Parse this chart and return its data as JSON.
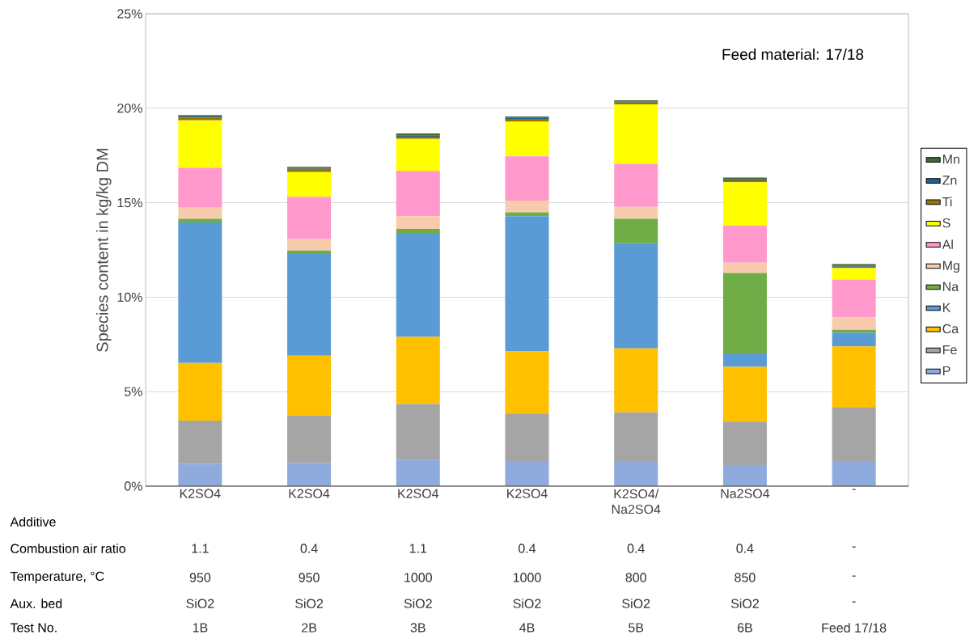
{
  "chart_data": {
    "type": "bar",
    "stacked": true,
    "ylabel": "Species content in kg/kg DM",
    "categories": [
      "K2SO4",
      "K2SO4",
      "K2SO4",
      "K2SO4",
      "K2SO4/ Na2SO4",
      "Na2SO4",
      "-"
    ],
    "series": [
      {
        "name": "P",
        "color": "#8faadc",
        "values": [
          1.18,
          1.23,
          1.4,
          1.28,
          1.28,
          1.11,
          1.33
        ]
      },
      {
        "name": "Fe",
        "color": "#a5a5a5",
        "values": [
          2.29,
          2.52,
          2.95,
          2.56,
          2.63,
          2.3,
          2.85
        ]
      },
      {
        "name": "Ca",
        "color": "#ffc000",
        "values": [
          3.05,
          3.15,
          3.55,
          3.29,
          3.38,
          2.9,
          3.21
        ]
      },
      {
        "name": "K",
        "color": "#5b9bd5",
        "values": [
          7.43,
          5.43,
          5.5,
          7.16,
          5.56,
          0.71,
          0.73
        ]
      },
      {
        "name": "Na",
        "color": "#70ad47",
        "values": [
          0.2,
          0.14,
          0.21,
          0.2,
          1.3,
          4.26,
          0.15
        ]
      },
      {
        "name": "Mg",
        "color": "#f8cbad",
        "values": [
          0.59,
          0.61,
          0.68,
          0.62,
          0.63,
          0.55,
          0.66
        ]
      },
      {
        "name": "Al",
        "color": "#ff99cc",
        "values": [
          2.11,
          2.23,
          2.39,
          2.34,
          2.28,
          1.95,
          2.0
        ]
      },
      {
        "name": "S",
        "color": "#ffff00",
        "values": [
          2.51,
          1.31,
          1.69,
          1.84,
          3.14,
          2.3,
          0.61
        ]
      },
      {
        "name": "Ti",
        "color": "#997300",
        "values": [
          0.14,
          0.17,
          0.12,
          0.14,
          0.1,
          0.1,
          0.07
        ]
      },
      {
        "name": "Zn",
        "color": "#255e91",
        "values": [
          0.07,
          0.04,
          0.08,
          0.07,
          0.05,
          0.07,
          0.04
        ]
      },
      {
        "name": "Mn",
        "color": "#43682b",
        "values": [
          0.07,
          0.07,
          0.09,
          0.06,
          0.07,
          0.08,
          0.1
        ]
      }
    ],
    "ylim": [
      0,
      25
    ],
    "yticks": [
      {
        "value": 0,
        "label": "0%"
      },
      {
        "value": 5,
        "label": "5%"
      },
      {
        "value": 10,
        "label": "10%"
      },
      {
        "value": 15,
        "label": "15%"
      },
      {
        "value": 20,
        "label": "20%"
      },
      {
        "value": 25,
        "label": "25%"
      }
    ],
    "grid": "y",
    "legend": "right",
    "annotations": [
      "Feed material: 17/18",
      "Additive",
      "Combustion air ratio",
      "1.1",
      "0.4",
      "1.1",
      "0.4",
      "0.4",
      "0.4",
      "-",
      "Temperature, °C",
      "950",
      "950",
      "1000",
      "1000",
      "800",
      "850",
      "-",
      "Aux. bed",
      "SiO2",
      "SiO2",
      "SiO2",
      "SiO2",
      "SiO2",
      "SiO2",
      "-",
      "Test No.",
      "1B",
      "2B",
      "3B",
      "4B",
      "5B",
      "6B",
      "Feed 17/18"
    ]
  }
}
